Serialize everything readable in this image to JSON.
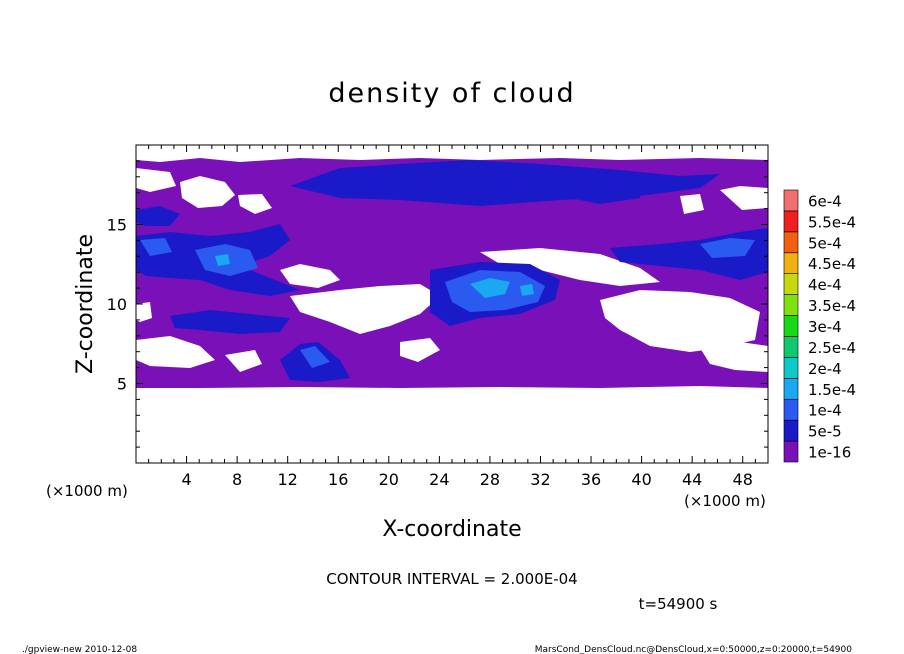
{
  "chart_data": {
    "type": "heatmap",
    "title": "density of cloud",
    "xlabel": "X-coordinate",
    "ylabel": "Z-coordinate",
    "x_unit": "(×1000 m)",
    "y_unit": "(×1000 m)",
    "xlim": [
      0,
      50
    ],
    "ylim": [
      0,
      20
    ],
    "x_ticks": [
      "4",
      "8",
      "12",
      "16",
      "20",
      "24",
      "28",
      "32",
      "36",
      "40",
      "44",
      "48"
    ],
    "y_ticks": [
      "5",
      "10",
      "15"
    ],
    "colorbar": {
      "levels": [
        "1e-16",
        "5e-5",
        "1e-4",
        "1.5e-4",
        "2e-4",
        "2.5e-4",
        "3e-4",
        "3.5e-4",
        "4e-4",
        "4.5e-4",
        "5e-4",
        "5.5e-4",
        "6e-4"
      ],
      "colors": [
        "#7a10b8",
        "#1a1ac8",
        "#2a5af0",
        "#1aa8f0",
        "#10c8c8",
        "#10c870",
        "#18d818",
        "#80e010",
        "#c8d810",
        "#f0b010",
        "#f06010",
        "#f02020",
        "#f07070"
      ]
    },
    "contour_interval": "CONTOUR INTERVAL = 2.000E-04",
    "time_label": "t=54900 s",
    "cloud_regions": [
      {
        "level": "1e-16",
        "desc": "cloud layer",
        "z_range": [
          4.8,
          19.0
        ],
        "x_range": [
          0,
          50
        ]
      },
      {
        "level": "5e-5",
        "desc": "upper band",
        "x_range": [
          16,
          48
        ],
        "z_range": [
          16.5,
          18.5
        ]
      },
      {
        "level": "5e-5",
        "desc": "left mid",
        "x_range": [
          0,
          14
        ],
        "z_range": [
          11,
          15.5
        ]
      },
      {
        "level": "1e-4",
        "desc": "core",
        "x_range": [
          23,
          33
        ],
        "z_range": [
          8.5,
          12.5
        ]
      },
      {
        "level": "5e-5",
        "desc": "lower blob",
        "x_range": [
          12,
          17
        ],
        "z_range": [
          5.5,
          8
        ]
      },
      {
        "level": "5e-5",
        "desc": "right band",
        "x_range": [
          38,
          50
        ],
        "z_range": [
          12,
          15
        ]
      }
    ]
  },
  "footer": {
    "left": "./gpview-new   2010-12-08",
    "right": "MarsCond_DensCloud.nc@DensCloud,x=0:50000,z=0:20000,t=54900"
  }
}
